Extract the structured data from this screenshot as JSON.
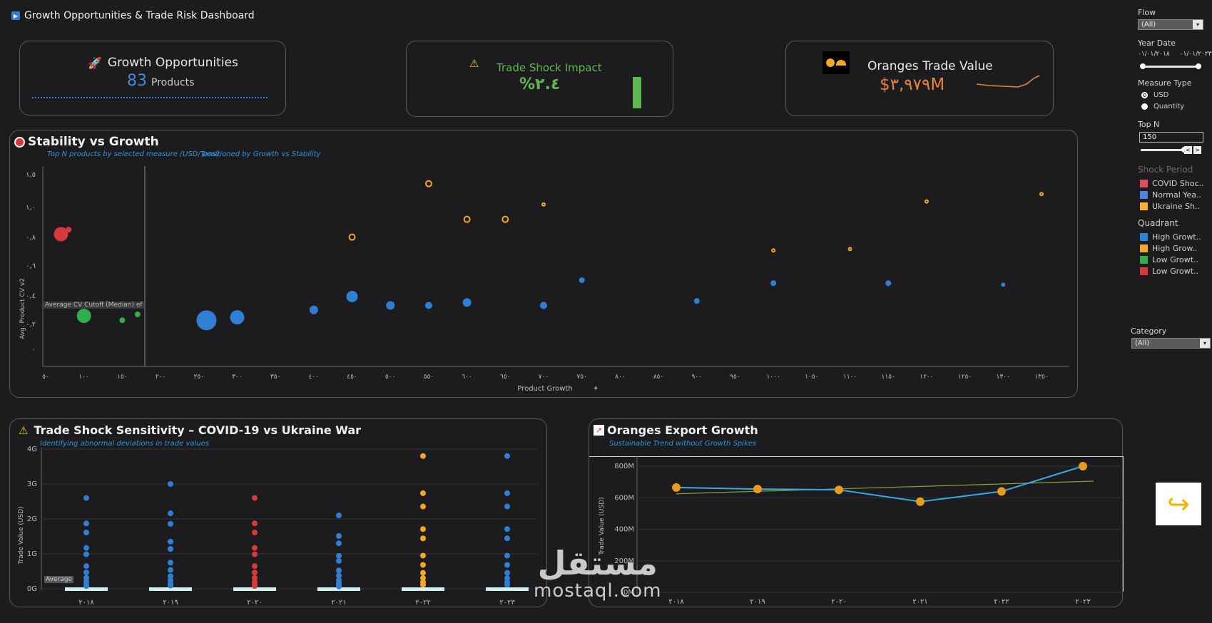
{
  "header": {
    "title": "Growth Opportunities & Trade Risk Dashboard"
  },
  "kpi_growth": {
    "title": "Growth Opportunities",
    "value": "83",
    "unit": "Products"
  },
  "kpi_shock": {
    "title": "Trade Shock Impact",
    "value": "%٢.٤"
  },
  "kpi_oranges": {
    "title": "Oranges Trade Value",
    "value": "$٣,٩٧٩M"
  },
  "stability": {
    "title": "Stability vs Growth",
    "subtitle1": "Top N products by selected measure (USD/Tons)",
    "subtitle2": "positioned by Growth vs Stability",
    "ref_label": "Average CV Cutoff (Median) ef",
    "xlabel": "Product Growth",
    "ylabel": "Avg. Product CV v2",
    "yticks": [
      "١,٥",
      "١,٠",
      "٠,٨",
      "٠,٦",
      "٠,٤",
      "٠,٢",
      "٠"
    ],
    "xticks": [
      "٥٠",
      "١٠٠",
      "١٥٠",
      "٢٠٠",
      "٢٥٠",
      "٣٠٠",
      "٣٥٠",
      "٤٠٠",
      "٤٥٠",
      "٥٠٠",
      "٥٥٠",
      "٦٠٠",
      "٦٥٠",
      "٧٠٠",
      "٧٥٠",
      "٨٠٠",
      "٨٥٠",
      "٩٠٠",
      "٩٥٠",
      "١٠٠٠",
      "١٠٥٠",
      "١١٠٠",
      "١١٥٠",
      "١٢٠٠",
      "١٢٥٠",
      "١٣٠٠",
      "١٣٥٠"
    ]
  },
  "sensitivity": {
    "title": "Trade Shock Sensitivity – COVID-19 vs Ukraine War",
    "subtitle": "Identifying abnormal deviations in trade values",
    "ylabel": "Trade Value (USD)",
    "yticks": [
      "4G",
      "3G",
      "2G",
      "1G",
      "0G"
    ],
    "xticks": [
      "٢٠١٨",
      "٢٠١٩",
      "٢٠٢٠",
      "٢٠٢١",
      "٢٠٢٢",
      "٢٠٢٣"
    ],
    "avg_label": "Average"
  },
  "export": {
    "title": "Oranges Export Growth",
    "subtitle": "Sustainable Trend without Growth Spikes",
    "ylabel": "Trade Value (USD)",
    "yticks": [
      "800M",
      "600M",
      "400M",
      "200M",
      "0M"
    ],
    "xticks": [
      "٢٠١٨",
      "٢٠١٩",
      "٢٠٢٠",
      "٢٠٢١",
      "٢٠٢٢",
      "٢٠٢٣"
    ]
  },
  "chart_data": [
    {
      "type": "scatter",
      "title": "Stability vs Growth",
      "xlabel": "Product Growth",
      "ylabel": "Avg. Product CV v2",
      "series": [
        {
          "name": "High Growth",
          "color": "#2f7fd4",
          "points": [
            [
              260,
              0.2
            ],
            [
              300,
              0.22
            ],
            [
              400,
              0.27
            ],
            [
              450,
              0.36
            ],
            [
              500,
              0.3
            ],
            [
              550,
              0.3
            ],
            [
              600,
              0.32
            ],
            [
              700,
              0.3
            ],
            [
              750,
              0.47
            ],
            [
              900,
              0.33
            ],
            [
              1000,
              0.45
            ],
            [
              1150,
              0.45
            ],
            [
              1300,
              0.44
            ]
          ]
        },
        {
          "name": "High Growth (orange)",
          "color": "#f5a623",
          "points": [
            [
              550,
              1.12
            ],
            [
              450,
              0.76
            ],
            [
              600,
              0.88
            ],
            [
              650,
              0.88
            ],
            [
              700,
              0.98
            ],
            [
              1000,
              0.67
            ],
            [
              1100,
              0.68
            ],
            [
              1200,
              1.0
            ],
            [
              1350,
              1.05
            ]
          ]
        },
        {
          "name": "Low Growth (green)",
          "color": "#2fae4a",
          "points": [
            [
              100,
              0.23
            ],
            [
              150,
              0.2
            ],
            [
              170,
              0.24
            ],
            [
              130,
              0.31
            ]
          ]
        },
        {
          "name": "Low Growth (red)",
          "color": "#d63a3a",
          "points": [
            [
              70,
              0.78
            ],
            [
              80,
              0.81
            ]
          ]
        }
      ]
    },
    {
      "type": "scatter",
      "title": "Trade Shock Sensitivity – COVID-19 vs Ukraine War",
      "ylabel": "Trade Value (USD)",
      "categories": [
        "٢٠١٨",
        "٢٠١٩",
        "٢٠٢٠",
        "٢٠٢١",
        "٢٠٢٢",
        "٢٠٢٣"
      ],
      "series": [
        {
          "name": "Normal Year",
          "color": "#2f7fd4",
          "max_values": [
            2.6,
            3.0,
            null,
            2.1,
            null,
            3.8
          ]
        },
        {
          "name": "COVID Shock",
          "color": "#d63a3a",
          "max_values": [
            null,
            null,
            2.6,
            null,
            null,
            null
          ]
        },
        {
          "name": "Ukraine Shock",
          "color": "#f5a623",
          "max_values": [
            null,
            null,
            null,
            null,
            3.8,
            null
          ]
        }
      ],
      "unit": "G"
    },
    {
      "type": "line",
      "title": "Oranges Export Growth",
      "ylabel": "Trade Value (USD)",
      "categories": [
        "٢٠١٨",
        "٢٠١٩",
        "٢٠٢٠",
        "٢٠٢١",
        "٢٠٢٢",
        "٢٠٢٣"
      ],
      "series": [
        {
          "name": "Trade Value",
          "values": [
            665,
            655,
            650,
            575,
            640,
            800
          ]
        }
      ],
      "trend": [
        625,
        705
      ],
      "ylim": [
        0,
        800
      ],
      "unit": "M"
    }
  ],
  "sidebar": {
    "flow_label": "Flow",
    "flow_value": "(All)",
    "year_label": "Year Date",
    "year_from": "٠١/٠١/٢٠١٨",
    "year_to": "٠١/٠١/٢٠٢٣",
    "measure_label": "Measure Type",
    "measure_options": [
      "USD",
      "Quantity"
    ],
    "topn_label": "Top N",
    "topn_value": "150",
    "shock_label": "Shock Period",
    "shock_items": [
      "COVID Shoc..",
      "Normal Yea..",
      "Ukraine Sh.."
    ],
    "shock_colors": [
      "#e0505a",
      "#4a86e0",
      "#f5b030"
    ],
    "quadrant_label": "Quadrant",
    "quadrant_items": [
      "High Growt..",
      "High Grow..",
      "Low Growt..",
      "Low Growt.."
    ],
    "quadrant_colors": [
      "#2f7fd4",
      "#f5a623",
      "#2fae4a",
      "#d63a3a"
    ],
    "category_label": "Category",
    "category_value": "(All)"
  },
  "watermark": {
    "arabic": "مستقل",
    "latin": "mostaql.com"
  }
}
